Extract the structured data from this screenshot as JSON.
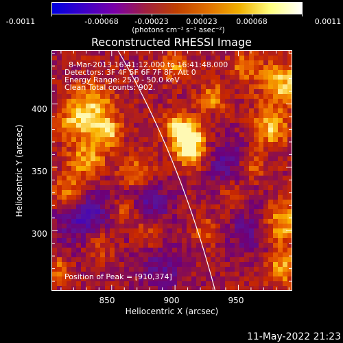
{
  "colorbar": {
    "tick_labels": [
      "-0.0011",
      "-0.00068",
      "-0.00023",
      "0.00023",
      "0.00068",
      "0.0011"
    ],
    "units": "(photons cm⁻² s⁻¹ asec⁻²)",
    "colors": [
      "#0000e0",
      "#3c00c8",
      "#7a00a8",
      "#a02040",
      "#c04000",
      "#e07000",
      "#f0b000",
      "#ffff80",
      "#ffffff"
    ]
  },
  "title": "Reconstructed RHESSI Image",
  "annotations": {
    "time": "8-Mar-2013 16:41:12.000 to 16:41:48.000",
    "detectors": "Detectors: 3F 4F 5F 6F 7F 8F, Att 0",
    "energy": "Energy Range: 25.0 - 50.0 keV",
    "clean": "Clean    Total counts: 902.",
    "peak": "Position of Peak = [910,374]"
  },
  "x_axis": {
    "label": "Heliocentric X (arcsec)",
    "ticks": [
      "850",
      "900",
      "950"
    ]
  },
  "y_axis": {
    "label": "Heliocentric Y (arcsec)",
    "ticks": [
      "400",
      "350",
      "300"
    ]
  },
  "chart_data": {
    "type": "heatmap",
    "title": "Reconstructed RHESSI Image",
    "xlabel": "Heliocentric X (arcsec)",
    "ylabel": "Heliocentric Y (arcsec)",
    "xlim": [
      803,
      992
    ],
    "ylim": [
      253,
      442
    ],
    "colorbar_range": [
      -0.0011,
      0.0011
    ],
    "peak": {
      "x": 910,
      "y": 374
    }
  },
  "footer": {
    "timestamp": "11-May-2022 21:23"
  }
}
